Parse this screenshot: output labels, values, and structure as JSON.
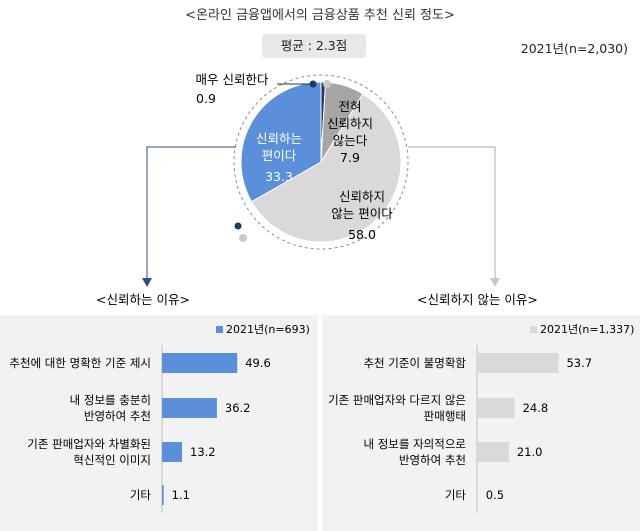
{
  "header": {
    "title": "<온라인 금융앱에서의 금융상품 추천 신뢰 정도>",
    "average": "평균 : 2.3점",
    "year_total": "2021년(n=2,030)"
  },
  "chart_data": [
    {
      "type": "pie",
      "title": "<온라인 금융앱에서의 금융상품 추천 신뢰 정도>",
      "slices": [
        {
          "label": "매우 신뢰한다",
          "value": 0.9,
          "color": "#1f3864"
        },
        {
          "label": "전혀 신뢰하지 않는다",
          "value": 7.9,
          "color": "#a6a6a6"
        },
        {
          "label": "신뢰하지 않는 편이다",
          "value": 58.0,
          "color": "#d9d9d9"
        },
        {
          "label": "신뢰하는 편이다",
          "value": 33.3,
          "color": "#5b8fd9"
        }
      ]
    },
    {
      "type": "bar",
      "orientation": "horizontal",
      "title": "<신뢰하는 이유>",
      "legend": "2021년(n=693)",
      "color": "#5b8fd9",
      "categories": [
        "추천에 대한 명확한 기준 제시",
        "내 정보를 충분히 반영하여 추천",
        "기존 판매업자와 차별화된 혁신적인 이미지",
        "기타"
      ],
      "values": [
        49.6,
        36.2,
        13.2,
        1.1
      ]
    },
    {
      "type": "bar",
      "orientation": "horizontal",
      "title": "<신뢰하지 않는 이유>",
      "legend": "2021년(n=1,337)",
      "color": "#d9d9d9",
      "categories": [
        "추천 기준이 불명확함",
        "기존 판매업자와 다르지 않은 판매행태",
        "내 정보를 자의적으로 반영하여 추천",
        "기타"
      ],
      "values": [
        53.7,
        24.8,
        21.0,
        0.5
      ]
    }
  ],
  "pie_labels": {
    "very_trust": {
      "label": "매우 신뢰한다",
      "value": "0.9"
    },
    "not_at_all": {
      "lines": [
        "전혀",
        "신뢰하지",
        "않는다"
      ],
      "value": "7.9"
    },
    "rather_not": {
      "lines": [
        "신뢰하지",
        "않는 편이다"
      ],
      "value": "58.0"
    },
    "rather_trust": {
      "lines": [
        "신뢰하는",
        "편이다"
      ],
      "value": "33.3"
    }
  },
  "left_panel": {
    "title": "<신뢰하는 이유>",
    "legend": "2021년(n=693)",
    "labels": [
      [
        "추천에 대한 명확한 기준 제시"
      ],
      [
        "내 정보를 충분히",
        "반영하여 추천"
      ],
      [
        "기존 판매업자와 차별화된",
        "혁신적인 이미지"
      ],
      [
        "기타"
      ]
    ],
    "values_text": [
      "49.6",
      "36.2",
      "13.2",
      "1.1"
    ]
  },
  "right_panel": {
    "title": "<신뢰하지 않는 이유>",
    "legend": "2021년(n=1,337)",
    "labels": [
      [
        "추천 기준이 불명확함"
      ],
      [
        "기존 판매업자와 다르지 않은",
        "판매행태"
      ],
      [
        "내 정보를 자의적으로",
        "반영하여 추천"
      ],
      [
        "기타"
      ]
    ],
    "values_text": [
      "53.7",
      "24.8",
      "21.0",
      "0.5"
    ]
  }
}
